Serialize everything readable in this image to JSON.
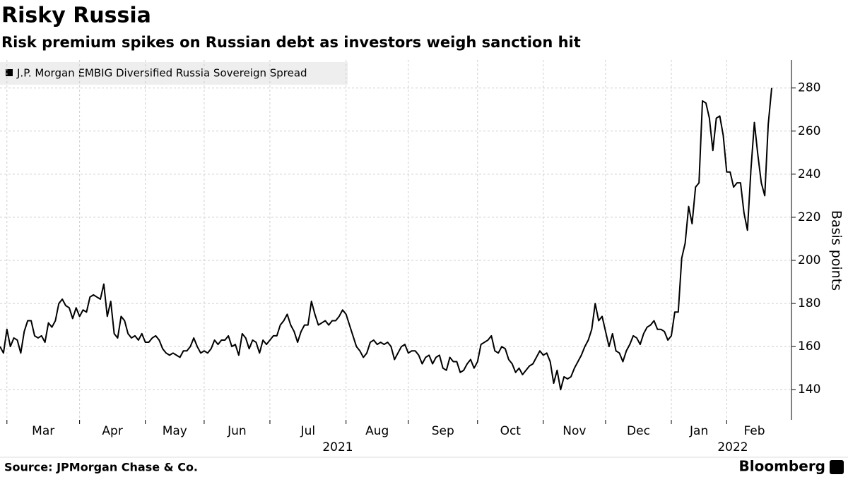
{
  "chart_data": {
    "type": "line",
    "title": "Risky Russia",
    "subtitle": "Risk premium spikes on Russian debt as investors weigh sanction hit",
    "y_label": "Basis points",
    "source": "Source: JPMorgan Chase & Co.",
    "brand": "Bloomberg",
    "ylim": [
      126,
      293
    ],
    "yticks": [
      140,
      160,
      180,
      200,
      220,
      240,
      260,
      280
    ],
    "xticks": [
      {
        "value": 2,
        "label": "Mar"
      },
      {
        "value": 23,
        "label": "Apr"
      },
      {
        "value": 42,
        "label": "May"
      },
      {
        "value": 59,
        "label": "Jun"
      },
      {
        "value": 78,
        "label": "Jul"
      },
      {
        "value": 100,
        "label": "Aug"
      },
      {
        "value": 118,
        "label": "Sep"
      },
      {
        "value": 138,
        "label": "Oct"
      },
      {
        "value": 157,
        "label": "Nov"
      },
      {
        "value": 175,
        "label": "Dec"
      },
      {
        "value": 194,
        "label": "Jan"
      },
      {
        "value": 210,
        "label": "Feb"
      }
    ],
    "years": [
      "2021",
      "2022"
    ],
    "grid": true,
    "series": [
      {
        "name": "J.P. Morgan EMBIG Diversified Russia Sovereign Spread",
        "color": "#000000",
        "values": [
          160,
          157,
          168,
          160,
          164,
          163,
          157,
          167,
          172,
          172,
          165,
          164,
          165,
          162,
          171,
          169,
          172,
          180,
          182,
          179,
          178,
          173,
          178,
          174,
          177,
          176,
          183,
          184,
          183,
          182,
          189,
          174,
          181,
          166,
          164,
          174,
          172,
          166,
          164,
          165,
          163,
          166,
          162,
          162,
          164,
          165,
          163,
          159,
          157,
          156,
          157,
          156,
          155,
          158,
          158,
          160,
          164,
          160,
          157,
          158,
          157,
          159,
          163,
          161,
          163,
          163,
          165,
          160,
          161,
          156,
          166,
          164,
          159,
          163,
          162,
          157,
          163,
          161,
          163,
          165,
          165,
          170,
          172,
          175,
          170,
          167,
          162,
          167,
          170,
          170,
          181,
          175,
          170,
          171,
          172,
          170,
          172,
          172,
          174,
          177,
          175,
          170,
          165,
          160,
          158,
          155,
          157,
          162,
          163,
          161,
          162,
          161,
          162,
          160,
          154,
          157,
          160,
          161,
          157,
          158,
          158,
          156,
          152,
          155,
          156,
          152,
          155,
          156,
          150,
          149,
          155,
          153,
          153,
          148,
          149,
          152,
          154,
          150,
          153,
          161,
          162,
          163,
          165,
          158,
          157,
          160,
          159,
          154,
          152,
          148,
          150,
          147,
          149,
          151,
          152,
          155,
          158,
          156,
          157,
          153,
          143,
          149,
          140,
          146,
          145,
          146,
          150,
          153,
          156,
          160,
          163,
          168,
          180,
          172,
          174,
          167,
          160,
          166,
          158,
          157,
          153,
          158,
          161,
          165,
          164,
          161,
          166,
          169,
          170,
          172,
          168,
          168,
          167,
          163,
          165,
          176,
          176,
          201,
          208,
          225,
          217,
          234,
          236,
          274,
          273,
          266,
          251,
          266,
          267,
          258,
          241,
          241,
          234,
          236,
          236,
          222,
          214,
          242,
          264,
          249,
          236,
          230,
          263,
          280
        ]
      }
    ]
  }
}
